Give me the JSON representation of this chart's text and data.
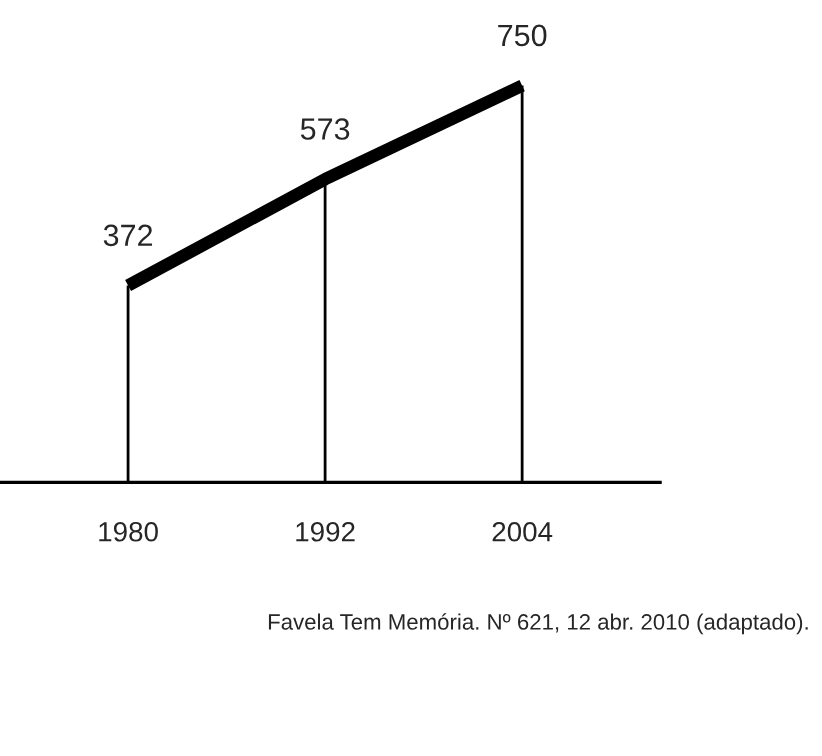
{
  "chart_data": {
    "type": "line",
    "categories": [
      "1980",
      "1992",
      "2004"
    ],
    "series": [
      {
        "color": "#000000",
        "values": [
          372,
          573,
          750
        ]
      }
    ],
    "data_labels": true,
    "legend": false,
    "marker": "none",
    "line_style": "solid",
    "annotations": [
      "Favela Tem Memória. Nº 621, 12 abr. 2010 (adaptado)."
    ]
  }
}
